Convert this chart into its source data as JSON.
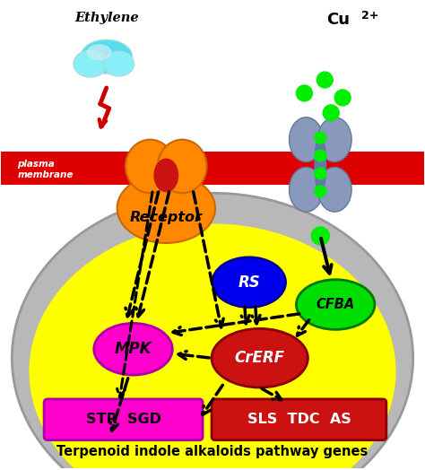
{
  "title": "Terpenoid indole alkaloids pathway genes",
  "background_color": "#ffffff",
  "plasma_membrane_color": "#dd0000",
  "plasma_membrane_label": "plasma\nmembrane",
  "cell_outer_color": "#c0c0c0",
  "cell_inner_color": "#ffff00",
  "ethylene_label": "Ethylene",
  "cu2plus_label": "Cu",
  "cu2plus_super": "2+",
  "receptor_label": "Receptor",
  "receptor_color": "#ff8800",
  "mpk_label": "MPK",
  "mpk_color": "#ff00cc",
  "crerf_label": "CrERF",
  "crerf_color": "#cc1111",
  "rs_label": "RS",
  "rs_color": "#0000ee",
  "cfba_label": "CFBA",
  "cfba_color": "#00cc00",
  "str_sgd_label": "STR  SGD",
  "str_sgd_color": "#ff00cc",
  "sls_tdc_as_label": "SLS  TDC  AS",
  "sls_tdc_as_color": "#cc1111",
  "green_dots_color": "#00ee00",
  "lightning_color": "#cc0000",
  "arrow_color": "#000000"
}
